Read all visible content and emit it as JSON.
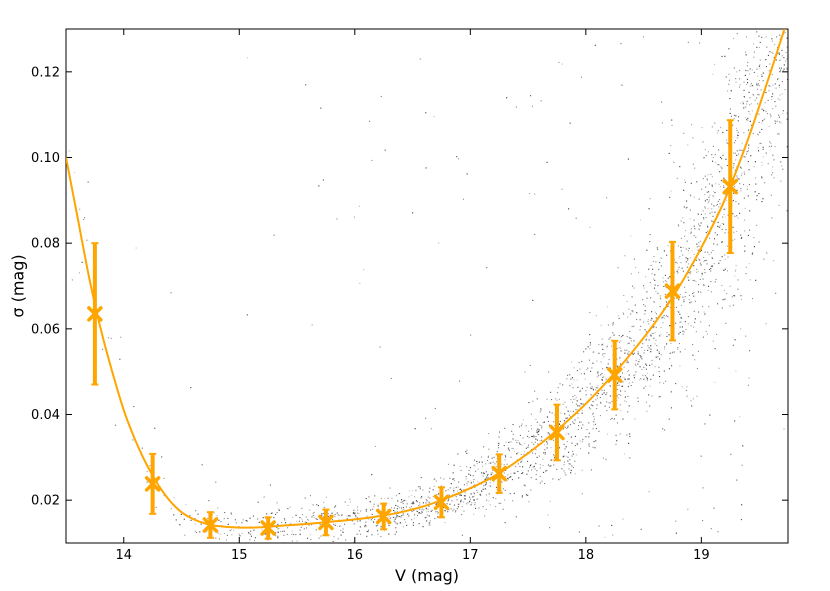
{
  "chart_data": {
    "type": "scatter",
    "title": "",
    "xlabel": "V (mag)",
    "ylabel": "σ (mag)",
    "xlim": [
      13.5,
      19.75
    ],
    "ylim": [
      0.01,
      0.13
    ],
    "x_ticks": [
      "14",
      "15",
      "16",
      "17",
      "18",
      "19"
    ],
    "x_tick_values": [
      14,
      15,
      16,
      17,
      18,
      19
    ],
    "y_ticks": [
      "0.02",
      "0.04",
      "0.06",
      "0.08",
      "0.10",
      "0.12"
    ],
    "y_tick_values": [
      0.02,
      0.04,
      0.06,
      0.08,
      0.1,
      0.12
    ],
    "grid": false,
    "legend": "none",
    "colors": {
      "fit": "#FFA500",
      "binned": "#FFA500",
      "scatter": "#333333"
    },
    "binned_points": {
      "x": [
        13.75,
        14.25,
        14.75,
        15.25,
        15.75,
        16.25,
        16.75,
        17.25,
        17.75,
        18.25,
        18.75,
        19.25
      ],
      "y": [
        0.0635,
        0.0238,
        0.0142,
        0.0135,
        0.0148,
        0.0162,
        0.0195,
        0.0262,
        0.0358,
        0.0492,
        0.0688,
        0.0932
      ],
      "yerr": [
        0.0165,
        0.007,
        0.003,
        0.0025,
        0.003,
        0.003,
        0.0035,
        0.0045,
        0.0065,
        0.008,
        0.0115,
        0.0155
      ]
    },
    "fit_curve": {
      "x": [
        13.5,
        13.6,
        13.7,
        13.8,
        13.9,
        14.0,
        14.1,
        14.2,
        14.3,
        14.4,
        14.5,
        14.6,
        14.7,
        14.8,
        15.0,
        15.2,
        15.4,
        15.6,
        15.8,
        16.0,
        16.2,
        16.4,
        16.6,
        16.8,
        17.0,
        17.2,
        17.4,
        17.6,
        17.8,
        18.0,
        18.2,
        18.4,
        18.6,
        18.8,
        19.0,
        19.2,
        19.4,
        19.6,
        19.72
      ],
      "y": [
        0.1,
        0.086,
        0.072,
        0.06,
        0.05,
        0.041,
        0.034,
        0.0282,
        0.0235,
        0.0198,
        0.0172,
        0.0156,
        0.0146,
        0.014,
        0.0136,
        0.0137,
        0.0141,
        0.0145,
        0.015,
        0.0155,
        0.0162,
        0.0172,
        0.0186,
        0.0205,
        0.0228,
        0.0255,
        0.029,
        0.033,
        0.0375,
        0.0425,
        0.0482,
        0.0545,
        0.0615,
        0.0695,
        0.079,
        0.09,
        0.104,
        0.12,
        0.13
      ]
    }
  }
}
